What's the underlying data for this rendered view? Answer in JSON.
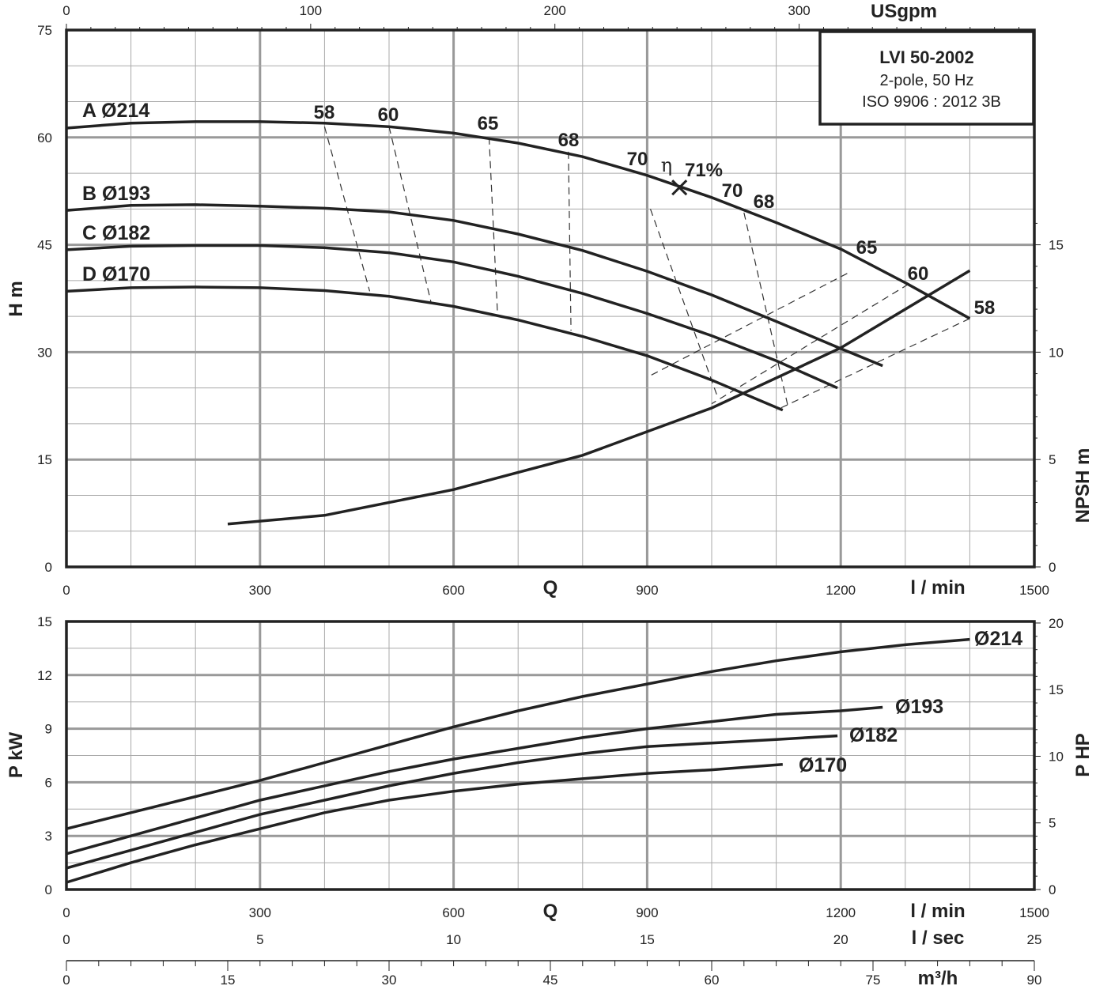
{
  "chart_data": [
    {
      "type": "line",
      "id": "head",
      "xlim": [
        0,
        1500
      ],
      "ylim": [
        0,
        75
      ],
      "x_ticks": [
        0,
        300,
        600,
        900,
        1200,
        1500
      ],
      "y_ticks": [
        0,
        15,
        30,
        45,
        60,
        75
      ],
      "top_axis": {
        "label": "USgpm",
        "ticks": [
          0,
          100,
          200,
          300
        ]
      },
      "right_axis": {
        "label": "NPSH m",
        "ticks": [
          0,
          5,
          10,
          15
        ]
      },
      "ylabel": "H m",
      "xlabel": "Q",
      "x_unit": "l / min",
      "grid": true,
      "legend_box": {
        "line1": "LVI 50-2002",
        "line2": "2-pole, 50 Hz",
        "line3": "ISO 9906 : 2012 3B"
      },
      "series": [
        {
          "name": "A Ø214",
          "x": [
            0,
            100,
            200,
            300,
            400,
            500,
            600,
            700,
            800,
            900,
            1000,
            1100,
            1200,
            1300,
            1400
          ],
          "y": [
            61.3,
            62.0,
            62.2,
            62.2,
            62.0,
            61.5,
            60.6,
            59.2,
            57.3,
            54.7,
            51.6,
            48.1,
            44.4,
            39.7,
            34.7
          ]
        },
        {
          "name": "B Ø193",
          "x": [
            0,
            100,
            200,
            300,
            400,
            500,
            600,
            700,
            800,
            900,
            1000,
            1100,
            1200,
            1265
          ],
          "y": [
            49.8,
            50.5,
            50.6,
            50.4,
            50.1,
            49.6,
            48.4,
            46.5,
            44.2,
            41.3,
            38.0,
            34.3,
            30.5,
            28.1
          ]
        },
        {
          "name": "C Ø182",
          "x": [
            0,
            100,
            200,
            300,
            400,
            500,
            600,
            700,
            800,
            900,
            1000,
            1100,
            1195
          ],
          "y": [
            44.3,
            44.8,
            44.9,
            44.9,
            44.6,
            43.9,
            42.6,
            40.6,
            38.2,
            35.4,
            32.3,
            28.8,
            25.0
          ]
        },
        {
          "name": "D Ø170",
          "x": [
            0,
            100,
            200,
            300,
            400,
            500,
            600,
            700,
            800,
            900,
            1000,
            1110
          ],
          "y": [
            38.5,
            39.0,
            39.1,
            39.0,
            38.6,
            37.8,
            36.4,
            34.5,
            32.2,
            29.5,
            26.1,
            21.9
          ]
        },
        {
          "name": "NPSH",
          "axis": "right",
          "x": [
            250,
            400,
            600,
            800,
            1000,
            1200,
            1400
          ],
          "y": [
            2.0,
            2.4,
            3.6,
            5.2,
            7.4,
            10.2,
            13.8
          ]
        }
      ],
      "efficiency_labels": [
        "58",
        "60",
        "65",
        "68",
        "70",
        "71%",
        "70",
        "68",
        "65",
        "60",
        "58"
      ],
      "eta_symbol": "η",
      "bep": {
        "x": 950,
        "y": 53,
        "efficiency": "71%"
      },
      "efficiency_lines": [
        {
          "label": "58",
          "x": [
            400,
            470
          ],
          "y": [
            61.5,
            38.5
          ]
        },
        {
          "label": "60",
          "x": [
            500,
            565
          ],
          "y": [
            61.5,
            37.0
          ]
        },
        {
          "label": "65",
          "x": [
            655,
            668
          ],
          "y": [
            60.0,
            35.5
          ]
        },
        {
          "label": "68",
          "x": [
            778,
            782
          ],
          "y": [
            58.0,
            33.0
          ]
        },
        {
          "label": "70",
          "x": [
            905,
            1010
          ],
          "y": [
            50.0,
            23.5
          ]
        },
        {
          "label": "68",
          "x": [
            1050,
            1118
          ],
          "y": [
            49.5,
            22.5
          ]
        },
        {
          "label": "65",
          "x": [
            1210,
            900
          ],
          "y": [
            41.0,
            26.5
          ]
        },
        {
          "label": "60",
          "x": [
            1305,
            1000
          ],
          "y": [
            39.5,
            22.8
          ]
        },
        {
          "label": "58",
          "x": [
            1400,
            1100
          ],
          "y": [
            34.7,
            21.9
          ]
        }
      ]
    },
    {
      "type": "line",
      "id": "power",
      "xlim": [
        0,
        1500
      ],
      "ylim": [
        0,
        15
      ],
      "x_ticks": [
        0,
        300,
        600,
        900,
        1200,
        1500
      ],
      "y_ticks": [
        0,
        3,
        6,
        9,
        12,
        15
      ],
      "right_axis": {
        "label": "P HP",
        "ticks": [
          0,
          5,
          10,
          15,
          20
        ]
      },
      "ylabel": "P kW",
      "xlabel": "Q",
      "x_unit": "l / min",
      "lsec_axis": {
        "label": "l / sec",
        "ticks": [
          0,
          5,
          10,
          15,
          20,
          25
        ]
      },
      "m3h_axis": {
        "label": "m³/h",
        "ticks": [
          0,
          15,
          30,
          45,
          60,
          75,
          90
        ]
      },
      "grid": true,
      "series": [
        {
          "name": "Ø214",
          "x": [
            0,
            100,
            200,
            300,
            400,
            500,
            600,
            700,
            800,
            900,
            1000,
            1100,
            1200,
            1300,
            1400
          ],
          "y": [
            3.4,
            4.3,
            5.2,
            6.1,
            7.1,
            8.1,
            9.1,
            10.0,
            10.8,
            11.5,
            12.2,
            12.8,
            13.3,
            13.7,
            14.0
          ]
        },
        {
          "name": "Ø193",
          "x": [
            0,
            100,
            200,
            300,
            400,
            500,
            600,
            700,
            800,
            900,
            1000,
            1100,
            1200,
            1265
          ],
          "y": [
            2.0,
            3.0,
            4.0,
            5.0,
            5.8,
            6.6,
            7.3,
            7.9,
            8.5,
            9.0,
            9.4,
            9.8,
            10.0,
            10.2
          ]
        },
        {
          "name": "Ø182",
          "x": [
            0,
            100,
            200,
            300,
            400,
            500,
            600,
            700,
            800,
            900,
            1000,
            1100,
            1195
          ],
          "y": [
            1.2,
            2.2,
            3.2,
            4.2,
            5.0,
            5.8,
            6.5,
            7.1,
            7.6,
            8.0,
            8.2,
            8.4,
            8.6
          ]
        },
        {
          "name": "Ø170",
          "x": [
            0,
            100,
            200,
            300,
            400,
            500,
            600,
            700,
            800,
            900,
            1000,
            1110
          ],
          "y": [
            0.4,
            1.5,
            2.5,
            3.4,
            4.3,
            5.0,
            5.5,
            5.9,
            6.2,
            6.5,
            6.7,
            7.0
          ]
        }
      ]
    }
  ]
}
